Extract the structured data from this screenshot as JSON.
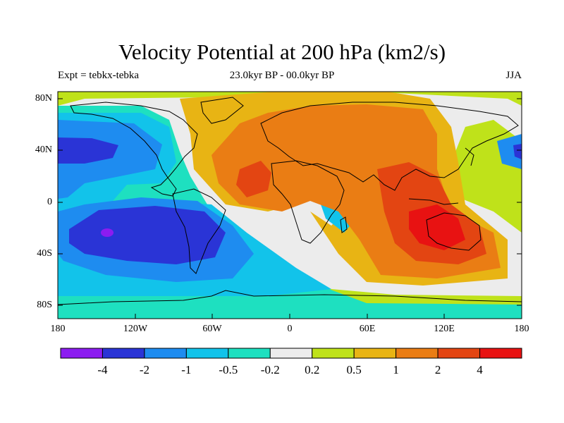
{
  "title": "Velocity Potential at 200 hPa (km2/s)",
  "left_label": "Expt = tebkx-tebka",
  "center_label": "23.0kyr BP - 00.0kyr BP",
  "right_label": "JJA",
  "y_axis_labels": [
    "80N",
    "40N",
    "0",
    "40S",
    "80S"
  ],
  "x_axis_labels": [
    "180",
    "120W",
    "60W",
    "0",
    "60E",
    "120E",
    "180"
  ],
  "colorbar": {
    "colors": [
      "#8c1cf0",
      "#2a34d6",
      "#1e8cf0",
      "#12c3ea",
      "#1ee0c0",
      "#ececec",
      "#bfe21a",
      "#e8b414",
      "#ea7d14",
      "#e34512",
      "#e81212"
    ],
    "labels": [
      "-4",
      "-2",
      "-1",
      "-0.5",
      "-0.2",
      "0.2",
      "0.5",
      "1",
      "2",
      "4"
    ]
  }
}
